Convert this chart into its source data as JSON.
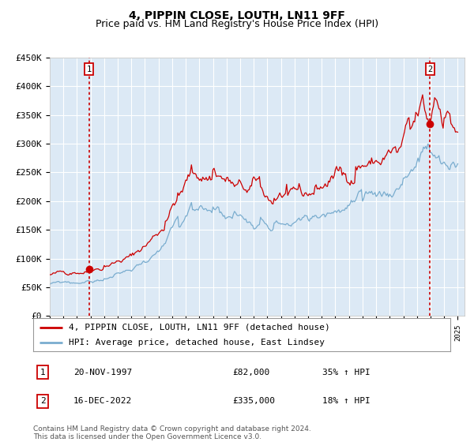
{
  "title": "4, PIPPIN CLOSE, LOUTH, LN11 9FF",
  "subtitle": "Price paid vs. HM Land Registry's House Price Index (HPI)",
  "title_fontsize": 10,
  "subtitle_fontsize": 9,
  "background_color": "#dce9f5",
  "red_line_color": "#cc0000",
  "blue_line_color": "#7aadcf",
  "grid_color": "#ffffff",
  "sale1_date_num": 1997.89,
  "sale1_price": 82000,
  "sale1_label": "1",
  "sale1_date_str": "20-NOV-1997",
  "sale1_price_str": "£82,000",
  "sale1_hpi_str": "35% ↑ HPI",
  "sale2_date_num": 2022.96,
  "sale2_price": 335000,
  "sale2_label": "2",
  "sale2_date_str": "16-DEC-2022",
  "sale2_price_str": "£335,000",
  "sale2_hpi_str": "18% ↑ HPI",
  "xmin": 1995.0,
  "xmax": 2025.5,
  "ymin": 0,
  "ymax": 450000,
  "ylabel_ticks": [
    0,
    50000,
    100000,
    150000,
    200000,
    250000,
    300000,
    350000,
    400000,
    450000
  ],
  "ylabel_labels": [
    "£0",
    "£50K",
    "£100K",
    "£150K",
    "£200K",
    "£250K",
    "£300K",
    "£350K",
    "£400K",
    "£450K"
  ],
  "legend_line1": "4, PIPPIN CLOSE, LOUTH, LN11 9FF (detached house)",
  "legend_line2": "HPI: Average price, detached house, East Lindsey",
  "footer": "Contains HM Land Registry data © Crown copyright and database right 2024.\nThis data is licensed under the Open Government Licence v3.0."
}
